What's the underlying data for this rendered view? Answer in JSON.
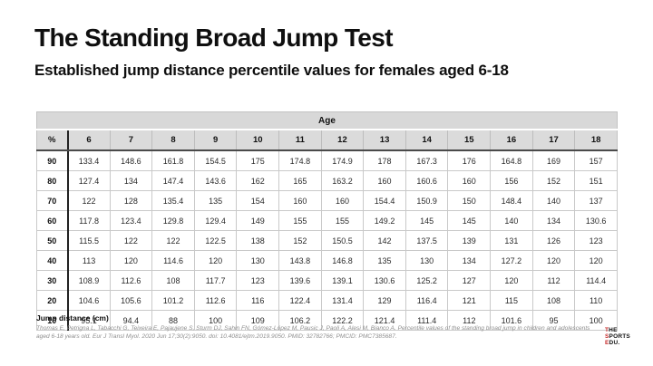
{
  "slide": {
    "title": "The Standing Broad Jump Test",
    "subtitle": "Established jump distance percentile values for females aged 6-18"
  },
  "table": {
    "age_header": "Age",
    "percent_header": "%",
    "age_columns": [
      "6",
      "7",
      "8",
      "9",
      "10",
      "11",
      "12",
      "13",
      "14",
      "15",
      "16",
      "17",
      "18"
    ],
    "rows": [
      {
        "percentile": "90",
        "values": [
          "133.4",
          "148.6",
          "161.8",
          "154.5",
          "175",
          "174.8",
          "174.9",
          "178",
          "167.3",
          "176",
          "164.8",
          "169",
          "157"
        ]
      },
      {
        "percentile": "80",
        "values": [
          "127.4",
          "134",
          "147.4",
          "143.6",
          "162",
          "165",
          "163.2",
          "160",
          "160.6",
          "160",
          "156",
          "152",
          "151"
        ]
      },
      {
        "percentile": "70",
        "values": [
          "122",
          "128",
          "135.4",
          "135",
          "154",
          "160",
          "160",
          "154.4",
          "150.9",
          "150",
          "148.4",
          "140",
          "137"
        ]
      },
      {
        "percentile": "60",
        "values": [
          "117.8",
          "123.4",
          "129.8",
          "129.4",
          "149",
          "155",
          "155",
          "149.2",
          "145",
          "145",
          "140",
          "134",
          "130.6"
        ]
      },
      {
        "percentile": "50",
        "values": [
          "115.5",
          "122",
          "122",
          "122.5",
          "138",
          "152",
          "150.5",
          "142",
          "137.5",
          "139",
          "131",
          "126",
          "123"
        ]
      },
      {
        "percentile": "40",
        "values": [
          "113",
          "120",
          "114.6",
          "120",
          "130",
          "143.8",
          "146.8",
          "135",
          "130",
          "134",
          "127.2",
          "120",
          "120"
        ]
      },
      {
        "percentile": "30",
        "values": [
          "108.9",
          "112.6",
          "108",
          "117.7",
          "123",
          "139.6",
          "139.1",
          "130.6",
          "125.2",
          "127",
          "120",
          "112",
          "114.4"
        ]
      },
      {
        "percentile": "20",
        "values": [
          "104.6",
          "105.6",
          "101.2",
          "112.6",
          "116",
          "122.4",
          "131.4",
          "129",
          "116.4",
          "121",
          "115",
          "108",
          "110"
        ]
      },
      {
        "percentile": "10",
        "values": [
          "95.1",
          "94.4",
          "88",
          "100",
          "109",
          "106.2",
          "122.2",
          "121.4",
          "111.4",
          "112",
          "101.6",
          "95",
          "100"
        ]
      }
    ],
    "footnote": "Jump distance (cm)"
  },
  "citation": "Thomas E, Petrigna L, Tabacchi G, Teixeira E, Pajaujene S, Sturm DJ, Sahin FN, Gómez-López M, Pausic J, Paoli A, Alesi M, Bianco A. Percentile values of the standing broad jump in children and adolescents aged 6-18 years old. Eur J Transl Myol. 2020 Jun 17;30(2):9050. doi: 10.4081/ejtm.2019.9050. PMID: 32782766; PMCID: PMC7385687.",
  "logo": {
    "line1": "THE",
    "line2": "SPORTS",
    "line3": "EDU.",
    "accent_color": "#c62a2a"
  }
}
